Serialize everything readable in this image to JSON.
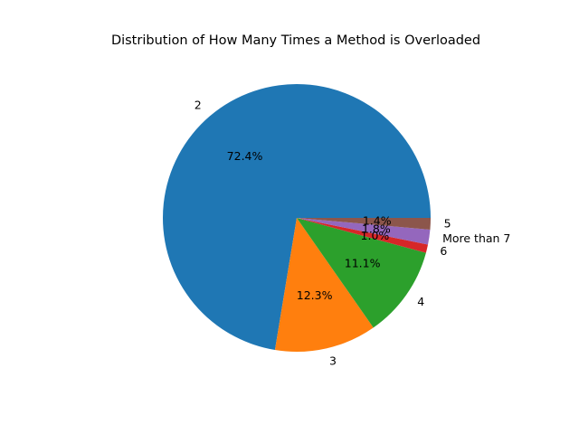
{
  "chart_data": {
    "type": "pie",
    "title": "Distribution of How Many Times a Method is Overloaded",
    "categories": [
      "2",
      "3",
      "4",
      "6",
      "More than 7",
      "5"
    ],
    "values": [
      72.4,
      12.3,
      11.1,
      1.0,
      1.8,
      1.4
    ],
    "percent_labels": [
      "72.4%",
      "12.3%",
      "11.1%",
      "1.0%",
      "1.8%",
      "1.4%"
    ],
    "colors": [
      "#1f77b4",
      "#ff7f0e",
      "#2ca02c",
      "#d62728",
      "#9467bd",
      "#8c564b"
    ],
    "start_angle_deg": 0,
    "direction": "counterclockwise",
    "legend": "none"
  }
}
